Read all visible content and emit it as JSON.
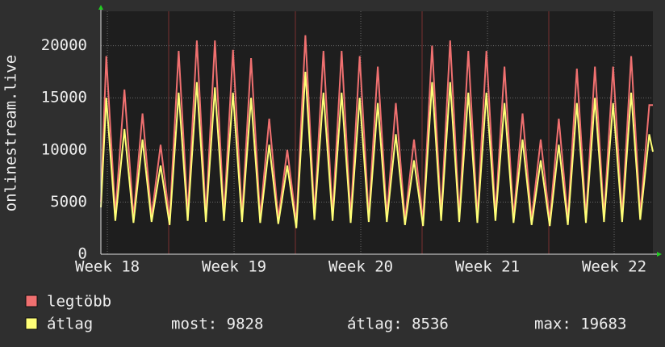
{
  "chart_data": {
    "type": "line",
    "ylabel": "onlinestream.live",
    "x": [
      0,
      0.3,
      0.8,
      1.3,
      1.8,
      2.3,
      2.8,
      3.3,
      3.8,
      4.3,
      4.8,
      5.3,
      5.8,
      6.3,
      6.8,
      7.3,
      7.8,
      8.3,
      8.8,
      9.3,
      9.8,
      10.3,
      10.8,
      11.3,
      11.8,
      12.3,
      12.8,
      13.3,
      13.8,
      14.3,
      14.8,
      15.3,
      15.8,
      16.3,
      16.8,
      17.3,
      17.8,
      18.3,
      18.8,
      19.3,
      19.8,
      20.3,
      20.8,
      21.3,
      21.8,
      22.3,
      22.8,
      23.3,
      23.8,
      24.3,
      24.8,
      25.3,
      25.8,
      26.3,
      26.8,
      27.3,
      27.8,
      28.3,
      28.8,
      29.3,
      29.8,
      30.3,
      30.5
    ],
    "series": [
      {
        "name": "legtöbb",
        "color": "#f07070",
        "values": [
          5000,
          19000,
          3800,
          15800,
          3500,
          13500,
          3600,
          10500,
          3300,
          19500,
          3800,
          20500,
          3600,
          20500,
          3700,
          19600,
          3600,
          18800,
          3500,
          13000,
          3400,
          10000,
          3000,
          21000,
          3800,
          19500,
          3700,
          19500,
          3500,
          19000,
          3600,
          18000,
          3600,
          14500,
          3300,
          11000,
          3200,
          20000,
          3700,
          20500,
          3600,
          19500,
          3500,
          19500,
          3700,
          18000,
          3500,
          13500,
          3300,
          11000,
          3200,
          13000,
          3300,
          17800,
          3500,
          18000,
          3600,
          18000,
          3600,
          19000,
          3800,
          14300,
          14300
        ]
      },
      {
        "name": "átlag",
        "color": "#ffff77",
        "values": [
          4500,
          15000,
          3200,
          12000,
          3000,
          11000,
          3100,
          8500,
          2800,
          15500,
          3200,
          16500,
          3100,
          16000,
          3200,
          15500,
          3100,
          15000,
          3000,
          10500,
          2900,
          8500,
          2500,
          17500,
          3300,
          15500,
          3200,
          15500,
          3000,
          15000,
          3100,
          14500,
          3100,
          11500,
          2800,
          9000,
          2700,
          16500,
          3200,
          16500,
          3100,
          15500,
          3000,
          15500,
          3200,
          14500,
          3000,
          11000,
          2800,
          9000,
          2700,
          10500,
          2800,
          14500,
          3000,
          15000,
          3100,
          14500,
          3100,
          15500,
          3300,
          11500,
          9828
        ]
      }
    ],
    "stats": [
      "most: 9828",
      "átlag: 8536",
      "max: 19683"
    ],
    "xlim": [
      0,
      30.5
    ],
    "xticks": [
      {
        "value": 0.36,
        "label": "Week 18"
      },
      {
        "value": 7.36,
        "label": "Week 19"
      },
      {
        "value": 14.36,
        "label": "Week 20"
      },
      {
        "value": 21.36,
        "label": "Week 21"
      },
      {
        "value": 28.36,
        "label": "Week 22"
      }
    ],
    "ylim": [
      0,
      23300
    ],
    "yticks": [
      0,
      5000,
      10000,
      15000,
      20000
    ],
    "grid": true
  }
}
